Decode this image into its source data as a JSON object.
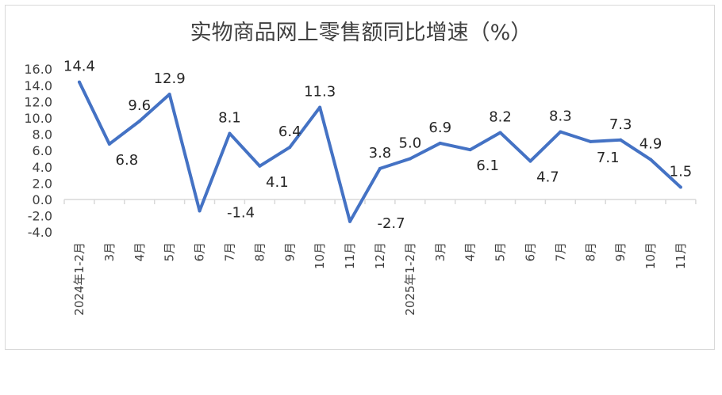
{
  "chart_data": {
    "type": "line",
    "title": "实物商品网上零售额同比增速（%）",
    "xlabel": "",
    "ylabel": "",
    "categories": [
      "2024年1-2月",
      "3月",
      "4月",
      "5月",
      "6月",
      "7月",
      "8月",
      "9月",
      "10月",
      "11月",
      "12月",
      "2025年1-2月",
      "3月",
      "4月",
      "5月",
      "6月",
      "7月",
      "8月",
      "9月",
      "10月",
      "11月"
    ],
    "series": [
      {
        "values": [
          14.4,
          6.8,
          9.6,
          12.9,
          -1.4,
          8.1,
          4.1,
          6.4,
          11.3,
          -2.7,
          3.8,
          5.0,
          6.9,
          6.1,
          8.2,
          4.7,
          8.3,
          7.1,
          7.3,
          4.9,
          1.5
        ],
        "color": "#4472c4"
      }
    ],
    "ylim": [
      -4.0,
      16.0
    ],
    "yticks": [
      "16.0",
      "14.0",
      "12.0",
      "10.0",
      "8.0",
      "6.0",
      "4.0",
      "2.0",
      "0.0",
      "-2.0",
      "-4.0"
    ],
    "grid": false,
    "legend": "none",
    "data_labels": true
  }
}
